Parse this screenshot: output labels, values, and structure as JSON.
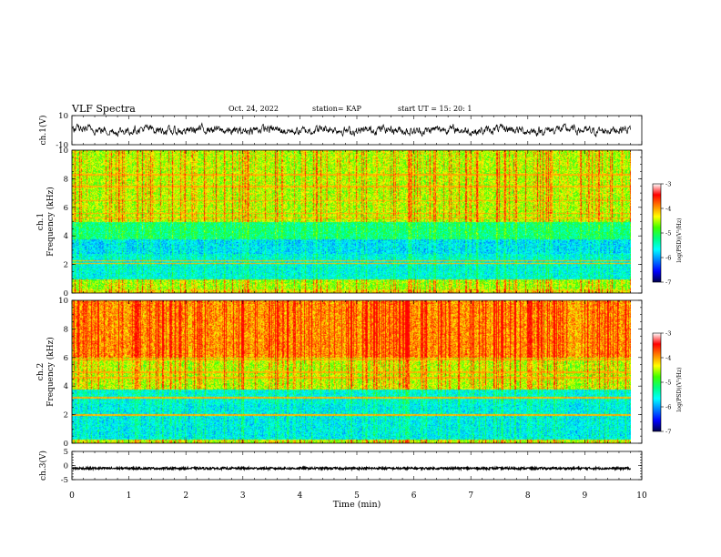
{
  "header": {
    "title": "VLF Spectra",
    "date": "Oct. 24, 2022",
    "station": "station= KAP",
    "start": "start UT =  15: 20: 1"
  },
  "chart_data": [
    {
      "type": "line",
      "panel": "ch1-waveform",
      "ylabel": "ch.1(V)",
      "ylim": [
        -10,
        10
      ],
      "xlim": [
        0,
        10
      ],
      "yticklabels": [
        "10",
        "-10"
      ],
      "data_range_x": [
        0,
        9.8
      ],
      "description_of_values": "noisy waveform fluctuating roughly between -4 and +4 V"
    },
    {
      "type": "heatmap",
      "panel": "ch1-spectrogram",
      "ylabel": "ch.1\nFrequency (kHz)",
      "ylabel_line1": "ch.1",
      "ylabel_line2": "Frequency (kHz)",
      "ylim": [
        0,
        10
      ],
      "xlim": [
        0,
        10
      ],
      "yticks": [
        0,
        2,
        4,
        6,
        8,
        10
      ],
      "yticklabels": [
        "0",
        "2",
        "4",
        "6",
        "8",
        "10"
      ],
      "data_range_x": [
        0,
        9.8
      ],
      "colorbar": {
        "label": "log(PSD)(V²/Hz)",
        "range": [
          -7,
          -3
        ],
        "ticks": [
          -7,
          -6,
          -5,
          -4,
          -3
        ],
        "ticklabels": [
          "-7",
          "-6",
          "-5",
          "-4",
          "-3"
        ]
      },
      "bands": [
        {
          "freq_range_khz": [
            0,
            0.3
          ],
          "log_psd": -4.0
        },
        {
          "freq_range_khz": [
            0.3,
            1.0
          ],
          "log_psd": -4.3
        },
        {
          "freq_range_khz": [
            1.0,
            2.8
          ],
          "log_psd": -5.4
        },
        {
          "freq_range_khz": [
            2.8,
            3.8
          ],
          "log_psd": -5.6
        },
        {
          "freq_range_khz": [
            3.8,
            5.0
          ],
          "log_psd": -5.0
        },
        {
          "freq_range_khz": [
            5.0,
            10.0
          ],
          "log_psd": -4.2
        }
      ],
      "narrowband_lines_khz": [
        2.1,
        2.3,
        5.3,
        5.6,
        6.5,
        7.5,
        8.3
      ]
    },
    {
      "type": "heatmap",
      "panel": "ch2-spectrogram",
      "ylabel": "ch.2\nFrequency (kHz)",
      "ylabel_line1": "ch.2",
      "ylabel_line2": "Frequency (kHz)",
      "ylim": [
        0,
        10
      ],
      "xlim": [
        0,
        10
      ],
      "yticks": [
        0,
        2,
        4,
        6,
        8,
        10
      ],
      "yticklabels": [
        "0",
        "2",
        "4",
        "6",
        "8",
        "10"
      ],
      "data_range_x": [
        0,
        9.8
      ],
      "colorbar": {
        "label": "log(PSD)(V²/Hz)",
        "range": [
          -7,
          -3
        ],
        "ticks": [
          -7,
          -6,
          -5,
          -4,
          -3
        ],
        "ticklabels": [
          "-7",
          "-6",
          "-5",
          "-4",
          "-3"
        ]
      },
      "bands": [
        {
          "freq_range_khz": [
            0,
            0.3
          ],
          "log_psd": -4.2
        },
        {
          "freq_range_khz": [
            0.3,
            1.2
          ],
          "log_psd": -5.5
        },
        {
          "freq_range_khz": [
            1.2,
            2.8
          ],
          "log_psd": -5.5
        },
        {
          "freq_range_khz": [
            2.8,
            3.8
          ],
          "log_psd": -5.4
        },
        {
          "freq_range_khz": [
            3.8,
            6.0
          ],
          "log_psd": -4.2
        },
        {
          "freq_range_khz": [
            6.0,
            10.0
          ],
          "log_psd": -3.6
        }
      ],
      "narrowband_lines_khz": [
        2.0,
        3.2,
        4.6,
        5.0,
        5.9,
        6.3,
        7.1,
        9.3
      ]
    },
    {
      "type": "line",
      "panel": "ch3-waveform",
      "ylabel": "ch.3(V)",
      "ylim": [
        -5,
        5
      ],
      "xlim": [
        0,
        10
      ],
      "yticks": [
        -5,
        0,
        5
      ],
      "yticklabels": [
        "-5",
        "0",
        "5"
      ],
      "data_range_x": [
        0,
        9.8
      ],
      "description_of_values": "nearly constant signal near -1 V with small noise"
    }
  ],
  "xaxis": {
    "label": "Time (min)",
    "ticks": [
      0,
      1,
      2,
      3,
      4,
      5,
      6,
      7,
      8,
      9,
      10
    ],
    "ticklabels": [
      "0",
      "1",
      "2",
      "3",
      "4",
      "5",
      "6",
      "7",
      "8",
      "9",
      "10"
    ]
  },
  "colors": {
    "colormap": [
      "#00004a",
      "#0000ff",
      "#0080ff",
      "#00ffff",
      "#00ff80",
      "#40ff00",
      "#ffff00",
      "#ff8000",
      "#ff0000",
      "#ffffff"
    ]
  }
}
